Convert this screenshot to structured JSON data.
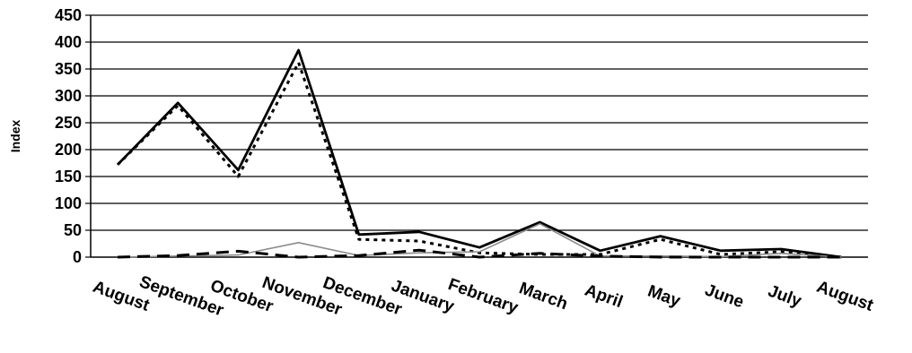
{
  "chart_data": {
    "type": "line",
    "title": "",
    "xlabel": "",
    "ylabel": "Index",
    "ylim": [
      0,
      450
    ],
    "yticks": [
      0,
      50,
      100,
      150,
      200,
      250,
      300,
      350,
      400,
      450
    ],
    "grid": true,
    "legend": "none",
    "categories": [
      "August",
      "September",
      "October",
      "November",
      "December",
      "January",
      "February",
      "March",
      "April",
      "May",
      "June",
      "July",
      "August"
    ],
    "series": [
      {
        "color": "#000000",
        "style": "solid",
        "values": [
          172,
          287,
          162,
          385,
          42,
          47,
          18,
          65,
          12,
          39,
          12,
          15,
          0
        ]
      },
      {
        "color": "#000000",
        "style": "dotted",
        "values": [
          172,
          282,
          150,
          362,
          33,
          30,
          8,
          5,
          5,
          33,
          5,
          10,
          0
        ]
      },
      {
        "color": "#8c8c8c",
        "style": "solid",
        "values": [
          0,
          2,
          4,
          27,
          3,
          8,
          10,
          62,
          2,
          2,
          1,
          7,
          0
        ]
      },
      {
        "color": "#000000",
        "style": "dashed",
        "values": [
          0,
          3,
          11,
          0,
          3,
          13,
          0,
          7,
          2,
          0,
          0,
          0,
          0
        ]
      }
    ]
  }
}
